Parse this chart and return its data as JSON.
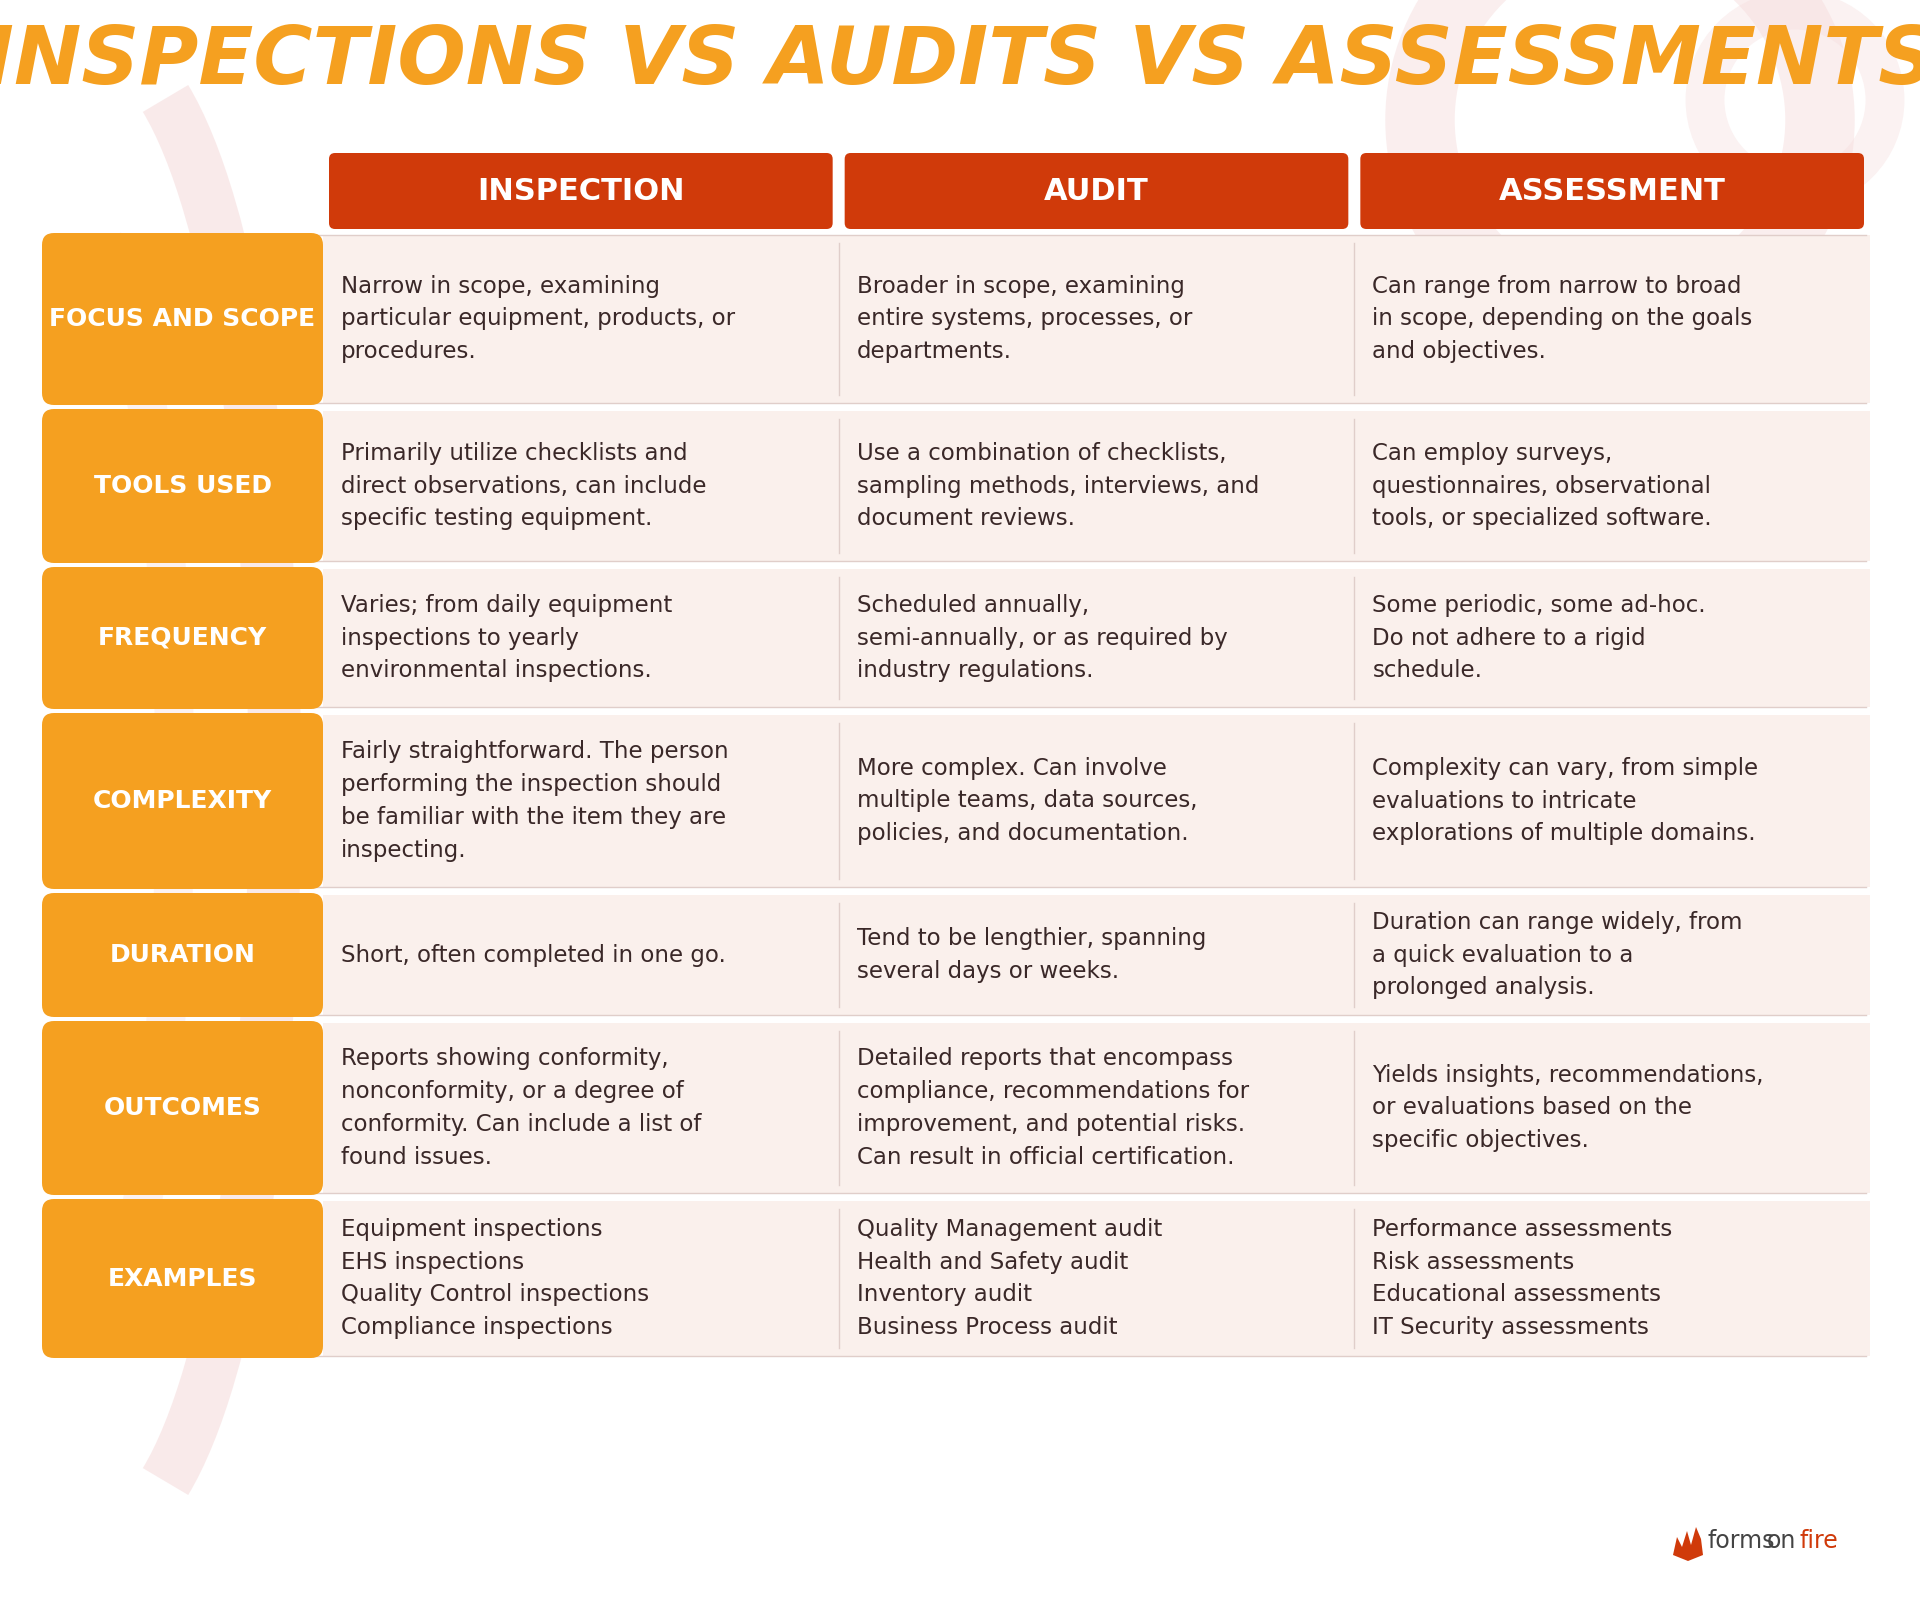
{
  "title": "INSPECTIONS VS AUDITS VS ASSESSMENTS",
  "title_color": "#F5A020",
  "bg_color": "#FFFFFF",
  "header_color": "#D03A0A",
  "row_label_color": "#F5A020",
  "cell_bg_color": "#FAF0EC",
  "separator_color": "#E0CECA",
  "text_color": "#3A2828",
  "col_headers": [
    "INSPECTION",
    "AUDIT",
    "ASSESSMENT"
  ],
  "row_labels": [
    "FOCUS AND SCOPE",
    "TOOLS USED",
    "FREQUENCY",
    "COMPLEXITY",
    "DURATION",
    "OUTCOMES",
    "EXAMPLES"
  ],
  "cells": [
    [
      "Narrow in scope, examining\nparticular equipment, products, or\nprocedures.",
      "Broader in scope, examining\nentire systems, processes, or\ndepartments.",
      "Can range from narrow to broad\nin scope, depending on the goals\nand objectives."
    ],
    [
      "Primarily utilize checklists and\ndirect observations, can include\nspecific testing equipment.",
      "Use a combination of checklists,\nsampling methods, interviews, and\ndocument reviews.",
      "Can employ surveys,\nquestionnaires, observational\ntools, or specialized software."
    ],
    [
      "Varies; from daily equipment\ninspections to yearly\nenvironmental inspections.",
      "Scheduled annually,\nsemi-annually, or as required by\nindustry regulations.",
      "Some periodic, some ad-hoc.\nDo not adhere to a rigid\nschedule."
    ],
    [
      "Fairly straightforward. The person\nperforming the inspection should\nbe familiar with the item they are\ninspecting.",
      "More complex. Can involve\nmultiple teams, data sources,\npolicies, and documentation.",
      "Complexity can vary, from simple\nevaluations to intricate\nexplorations of multiple domains."
    ],
    [
      "Short, often completed in one go.",
      "Tend to be lengthier, spanning\nseveral days or weeks.",
      "Duration can range widely, from\na quick evaluation to a\nprolonged analysis."
    ],
    [
      "Reports showing conformity,\nnonconformity, or a degree of\nconformity. Can include a list of\nfound issues.",
      "Detailed reports that encompass\ncompliance, recommendations for\nimprovement, and potential risks.\nCan result in official certification.",
      "Yields insights, recommendations,\nor evaluations based on the\nspecific objectives."
    ],
    [
      "Equipment inspections\nEHS inspections\nQuality Control inspections\nCompliance inspections",
      "Quality Management audit\nHealth and Safety audit\nInventory audit\nBusiness Process audit",
      "Performance assessments\nRisk assessments\nEducational assessments\nIT Security assessments"
    ]
  ]
}
